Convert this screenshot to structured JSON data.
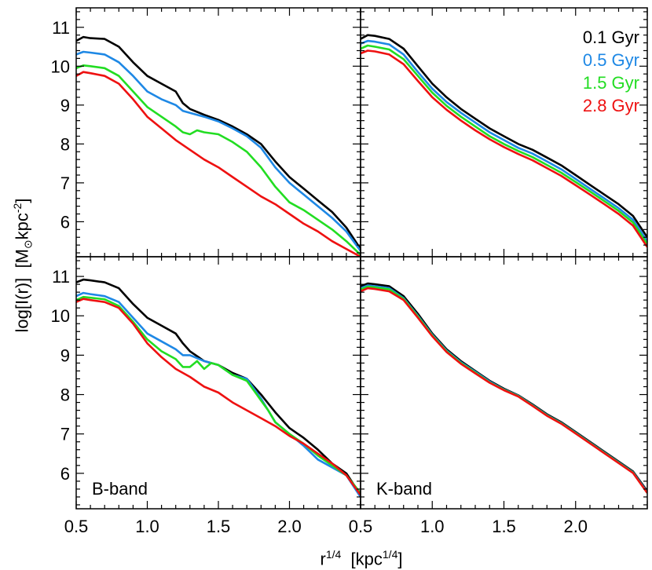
{
  "figure": {
    "ylabel_main": "log[I(r)]",
    "ylabel_unit_prefix": "[M",
    "ylabel_unit_sun": "⊙",
    "ylabel_unit_mid": "kpc",
    "ylabel_unit_exp": "-2",
    "ylabel_unit_suffix": "]",
    "xlabel_main": "r",
    "xlabel_exp": "1/4",
    "xlabel_unit_prefix": "[kpc",
    "xlabel_unit_exp": "1/4",
    "xlabel_unit_suffix": "]"
  },
  "colors": {
    "0.1 Gyr": "#000000",
    "0.5 Gyr": "#1e88e5",
    "1.5 Gyr": "#22dd22",
    "2.8 Gyr": "#ee1111"
  },
  "chart_data": [
    {
      "type": "line",
      "panel": "top-left",
      "label": "",
      "xlim": [
        0.5,
        2.5
      ],
      "ylim": [
        5.1,
        11.5
      ],
      "xticks": [],
      "yticks": [
        "6",
        "7",
        "8",
        "9",
        "10",
        "11"
      ],
      "series": [
        {
          "name": "0.1 Gyr",
          "color": "#000000",
          "x": [
            0.5,
            0.55,
            0.6,
            0.7,
            0.8,
            0.9,
            1.0,
            1.1,
            1.2,
            1.25,
            1.3,
            1.4,
            1.5,
            1.6,
            1.7,
            1.8,
            1.9,
            2.0,
            2.1,
            2.2,
            2.3,
            2.4,
            2.5
          ],
          "y": [
            10.65,
            10.75,
            10.72,
            10.7,
            10.5,
            10.1,
            9.75,
            9.55,
            9.35,
            9.05,
            8.9,
            8.75,
            8.62,
            8.45,
            8.25,
            8.0,
            7.55,
            7.15,
            6.85,
            6.55,
            6.25,
            5.85,
            5.3
          ]
        },
        {
          "name": "0.5 Gyr",
          "color": "#1e88e5",
          "x": [
            0.5,
            0.55,
            0.6,
            0.7,
            0.8,
            0.9,
            1.0,
            1.1,
            1.2,
            1.25,
            1.3,
            1.4,
            1.5,
            1.6,
            1.7,
            1.8,
            1.9,
            2.0,
            2.1,
            2.2,
            2.3,
            2.4,
            2.5
          ],
          "y": [
            10.3,
            10.37,
            10.35,
            10.3,
            10.1,
            9.75,
            9.35,
            9.15,
            9.0,
            8.85,
            8.8,
            8.7,
            8.58,
            8.4,
            8.2,
            7.9,
            7.4,
            7.0,
            6.7,
            6.4,
            6.1,
            5.75,
            5.25
          ]
        },
        {
          "name": "1.5 Gyr",
          "color": "#22dd22",
          "x": [
            0.5,
            0.55,
            0.6,
            0.7,
            0.8,
            0.9,
            1.0,
            1.1,
            1.2,
            1.25,
            1.3,
            1.35,
            1.4,
            1.5,
            1.6,
            1.7,
            1.8,
            1.9,
            2.0,
            2.1,
            2.2,
            2.3,
            2.4,
            2.5
          ],
          "y": [
            9.95,
            10.02,
            10.0,
            9.95,
            9.75,
            9.35,
            8.95,
            8.7,
            8.45,
            8.3,
            8.25,
            8.35,
            8.3,
            8.25,
            8.05,
            7.8,
            7.4,
            6.9,
            6.5,
            6.3,
            6.05,
            5.8,
            5.5,
            5.15
          ]
        },
        {
          "name": "2.8 Gyr",
          "color": "#ee1111",
          "x": [
            0.5,
            0.55,
            0.6,
            0.7,
            0.8,
            0.9,
            1.0,
            1.1,
            1.2,
            1.3,
            1.4,
            1.5,
            1.6,
            1.7,
            1.8,
            1.9,
            2.0,
            2.1,
            2.2,
            2.3,
            2.4,
            2.5
          ],
          "y": [
            9.75,
            9.85,
            9.82,
            9.75,
            9.55,
            9.15,
            8.7,
            8.4,
            8.1,
            7.85,
            7.6,
            7.4,
            7.15,
            6.9,
            6.65,
            6.45,
            6.2,
            5.95,
            5.75,
            5.5,
            5.3,
            5.1
          ]
        }
      ]
    },
    {
      "type": "line",
      "panel": "top-right",
      "label": "",
      "xlim": [
        0.5,
        2.5
      ],
      "ylim": [
        5.1,
        11.5
      ],
      "xticks": [],
      "yticks": [],
      "legend": [
        "0.1 Gyr",
        "0.5 Gyr",
        "1.5 Gyr",
        "2.8 Gyr"
      ],
      "legend_position": "top-right",
      "series": [
        {
          "name": "0.1 Gyr",
          "color": "#000000",
          "x": [
            0.5,
            0.55,
            0.6,
            0.7,
            0.8,
            0.9,
            1.0,
            1.1,
            1.2,
            1.3,
            1.4,
            1.5,
            1.6,
            1.7,
            1.8,
            1.9,
            2.0,
            2.1,
            2.2,
            2.3,
            2.4,
            2.5
          ],
          "y": [
            10.7,
            10.8,
            10.78,
            10.7,
            10.45,
            10.0,
            9.55,
            9.2,
            8.9,
            8.65,
            8.4,
            8.2,
            8.0,
            7.85,
            7.65,
            7.45,
            7.2,
            6.95,
            6.7,
            6.45,
            6.15,
            5.6
          ]
        },
        {
          "name": "0.5 Gyr",
          "color": "#1e88e5",
          "x": [
            0.5,
            0.55,
            0.6,
            0.7,
            0.8,
            0.9,
            1.0,
            1.1,
            1.2,
            1.3,
            1.4,
            1.5,
            1.6,
            1.7,
            1.8,
            1.9,
            2.0,
            2.1,
            2.2,
            2.3,
            2.4,
            2.5
          ],
          "y": [
            10.58,
            10.65,
            10.63,
            10.56,
            10.3,
            9.85,
            9.42,
            9.08,
            8.8,
            8.55,
            8.3,
            8.1,
            7.9,
            7.75,
            7.55,
            7.35,
            7.1,
            6.85,
            6.6,
            6.35,
            6.05,
            5.5
          ]
        },
        {
          "name": "1.5 Gyr",
          "color": "#22dd22",
          "x": [
            0.5,
            0.55,
            0.6,
            0.7,
            0.8,
            0.9,
            1.0,
            1.1,
            1.2,
            1.3,
            1.4,
            1.5,
            1.6,
            1.7,
            1.8,
            1.9,
            2.0,
            2.1,
            2.2,
            2.3,
            2.4,
            2.5
          ],
          "y": [
            10.45,
            10.53,
            10.5,
            10.43,
            10.18,
            9.75,
            9.32,
            8.98,
            8.7,
            8.45,
            8.2,
            8.0,
            7.82,
            7.66,
            7.46,
            7.26,
            7.02,
            6.78,
            6.53,
            6.28,
            5.98,
            5.43
          ]
        },
        {
          "name": "2.8 Gyr",
          "color": "#ee1111",
          "x": [
            0.5,
            0.55,
            0.6,
            0.7,
            0.8,
            0.9,
            1.0,
            1.1,
            1.2,
            1.3,
            1.4,
            1.5,
            1.6,
            1.7,
            1.8,
            1.9,
            2.0,
            2.1,
            2.2,
            2.3,
            2.4,
            2.5
          ],
          "y": [
            10.33,
            10.4,
            10.38,
            10.3,
            10.05,
            9.62,
            9.2,
            8.88,
            8.6,
            8.35,
            8.12,
            7.92,
            7.74,
            7.58,
            7.38,
            7.18,
            6.94,
            6.7,
            6.45,
            6.2,
            5.9,
            5.35
          ]
        }
      ]
    },
    {
      "type": "line",
      "panel": "bottom-left",
      "label": "B-band",
      "xlim": [
        0.5,
        2.5
      ],
      "ylim": [
        5.1,
        11.5
      ],
      "xticks": [
        "0.5",
        "1.0",
        "1.5",
        "2.0"
      ],
      "yticks": [
        "6",
        "7",
        "8",
        "9",
        "10",
        "11"
      ],
      "series": [
        {
          "name": "0.1 Gyr",
          "color": "#000000",
          "x": [
            0.5,
            0.55,
            0.6,
            0.7,
            0.8,
            0.9,
            1.0,
            1.1,
            1.2,
            1.25,
            1.3,
            1.4,
            1.5,
            1.6,
            1.7,
            1.75,
            1.8,
            1.9,
            2.0,
            2.1,
            2.2,
            2.3,
            2.4,
            2.5
          ],
          "y": [
            10.85,
            10.92,
            10.9,
            10.85,
            10.7,
            10.3,
            9.95,
            9.75,
            9.55,
            9.3,
            9.1,
            8.85,
            8.75,
            8.55,
            8.4,
            8.2,
            8.0,
            7.55,
            7.15,
            6.9,
            6.6,
            6.25,
            6.0,
            5.45
          ]
        },
        {
          "name": "0.5 Gyr",
          "color": "#1e88e5",
          "x": [
            0.5,
            0.55,
            0.6,
            0.7,
            0.8,
            0.9,
            1.0,
            1.1,
            1.2,
            1.25,
            1.3,
            1.4,
            1.5,
            1.6,
            1.7,
            1.8,
            1.9,
            2.0,
            2.1,
            2.2,
            2.3,
            2.4,
            2.5
          ],
          "y": [
            10.5,
            10.58,
            10.55,
            10.5,
            10.35,
            9.95,
            9.55,
            9.35,
            9.15,
            9.0,
            9.0,
            8.85,
            8.75,
            8.5,
            8.4,
            7.9,
            7.3,
            7.0,
            6.7,
            6.35,
            6.15,
            5.95,
            5.4
          ]
        },
        {
          "name": "1.5 Gyr",
          "color": "#22dd22",
          "x": [
            0.5,
            0.55,
            0.6,
            0.7,
            0.8,
            0.9,
            1.0,
            1.1,
            1.2,
            1.25,
            1.3,
            1.35,
            1.4,
            1.45,
            1.5,
            1.6,
            1.7,
            1.75,
            1.8,
            1.85,
            1.9,
            2.0,
            2.1,
            2.2,
            2.3,
            2.4,
            2.5
          ],
          "y": [
            10.4,
            10.48,
            10.46,
            10.42,
            10.25,
            9.85,
            9.4,
            9.1,
            8.9,
            8.7,
            8.7,
            8.85,
            8.65,
            8.8,
            8.75,
            8.5,
            8.35,
            8.1,
            7.85,
            7.6,
            7.3,
            7.0,
            6.75,
            6.45,
            6.2,
            5.95,
            5.5
          ]
        },
        {
          "name": "2.8 Gyr",
          "color": "#ee1111",
          "x": [
            0.5,
            0.55,
            0.6,
            0.7,
            0.8,
            0.9,
            1.0,
            1.1,
            1.2,
            1.3,
            1.4,
            1.5,
            1.6,
            1.7,
            1.8,
            1.9,
            2.0,
            2.1,
            2.2,
            2.3,
            2.4,
            2.5
          ],
          "y": [
            10.35,
            10.43,
            10.4,
            10.35,
            10.2,
            9.8,
            9.3,
            8.95,
            8.65,
            8.45,
            8.2,
            8.05,
            7.8,
            7.6,
            7.4,
            7.2,
            6.95,
            6.75,
            6.5,
            6.25,
            5.95,
            5.45
          ]
        }
      ]
    },
    {
      "type": "line",
      "panel": "bottom-right",
      "label": "K-band",
      "xlim": [
        0.5,
        2.5
      ],
      "ylim": [
        5.1,
        11.5
      ],
      "xticks": [
        "0.5",
        "1.0",
        "1.5",
        "2.0"
      ],
      "yticks": [],
      "series": [
        {
          "name": "0.1 Gyr",
          "color": "#000000",
          "x": [
            0.5,
            0.55,
            0.6,
            0.7,
            0.8,
            0.9,
            1.0,
            1.1,
            1.2,
            1.3,
            1.4,
            1.5,
            1.6,
            1.7,
            1.8,
            1.9,
            2.0,
            2.1,
            2.2,
            2.3,
            2.4,
            2.5
          ],
          "y": [
            10.75,
            10.82,
            10.8,
            10.75,
            10.5,
            10.05,
            9.55,
            9.15,
            8.85,
            8.6,
            8.35,
            8.15,
            7.98,
            7.75,
            7.5,
            7.3,
            7.05,
            6.8,
            6.55,
            6.3,
            6.05,
            5.55
          ]
        },
        {
          "name": "0.5 Gyr",
          "color": "#1e88e5",
          "x": [
            0.5,
            0.55,
            0.6,
            0.7,
            0.8,
            0.9,
            1.0,
            1.1,
            1.2,
            1.3,
            1.4,
            1.5,
            1.6,
            1.7,
            1.8,
            1.9,
            2.0,
            2.1,
            2.2,
            2.3,
            2.4,
            2.5
          ],
          "y": [
            10.7,
            10.77,
            10.75,
            10.7,
            10.45,
            10.0,
            9.52,
            9.12,
            8.82,
            8.58,
            8.33,
            8.13,
            7.97,
            7.73,
            7.48,
            7.28,
            7.03,
            6.78,
            6.53,
            6.28,
            6.03,
            5.52
          ]
        },
        {
          "name": "1.5 Gyr",
          "color": "#22dd22",
          "x": [
            0.5,
            0.55,
            0.6,
            0.7,
            0.8,
            0.9,
            1.0,
            1.1,
            1.2,
            1.3,
            1.4,
            1.5,
            1.6,
            1.7,
            1.8,
            1.9,
            2.0,
            2.1,
            2.2,
            2.3,
            2.4,
            2.5
          ],
          "y": [
            10.67,
            10.74,
            10.72,
            10.67,
            10.43,
            9.98,
            9.5,
            9.1,
            8.8,
            8.56,
            8.31,
            8.12,
            7.96,
            7.72,
            7.47,
            7.27,
            7.02,
            6.77,
            6.52,
            6.27,
            6.02,
            5.5
          ]
        },
        {
          "name": "2.8 Gyr",
          "color": "#ee1111",
          "x": [
            0.5,
            0.55,
            0.6,
            0.7,
            0.8,
            0.9,
            1.0,
            1.1,
            1.2,
            1.3,
            1.4,
            1.5,
            1.6,
            1.7,
            1.8,
            1.9,
            2.0,
            2.1,
            2.2,
            2.3,
            2.4,
            2.5
          ],
          "y": [
            10.62,
            10.7,
            10.68,
            10.62,
            10.4,
            9.95,
            9.48,
            9.08,
            8.78,
            8.54,
            8.3,
            8.11,
            7.95,
            7.71,
            7.46,
            7.26,
            7.01,
            6.76,
            6.51,
            6.26,
            6.01,
            5.5
          ]
        }
      ]
    }
  ]
}
